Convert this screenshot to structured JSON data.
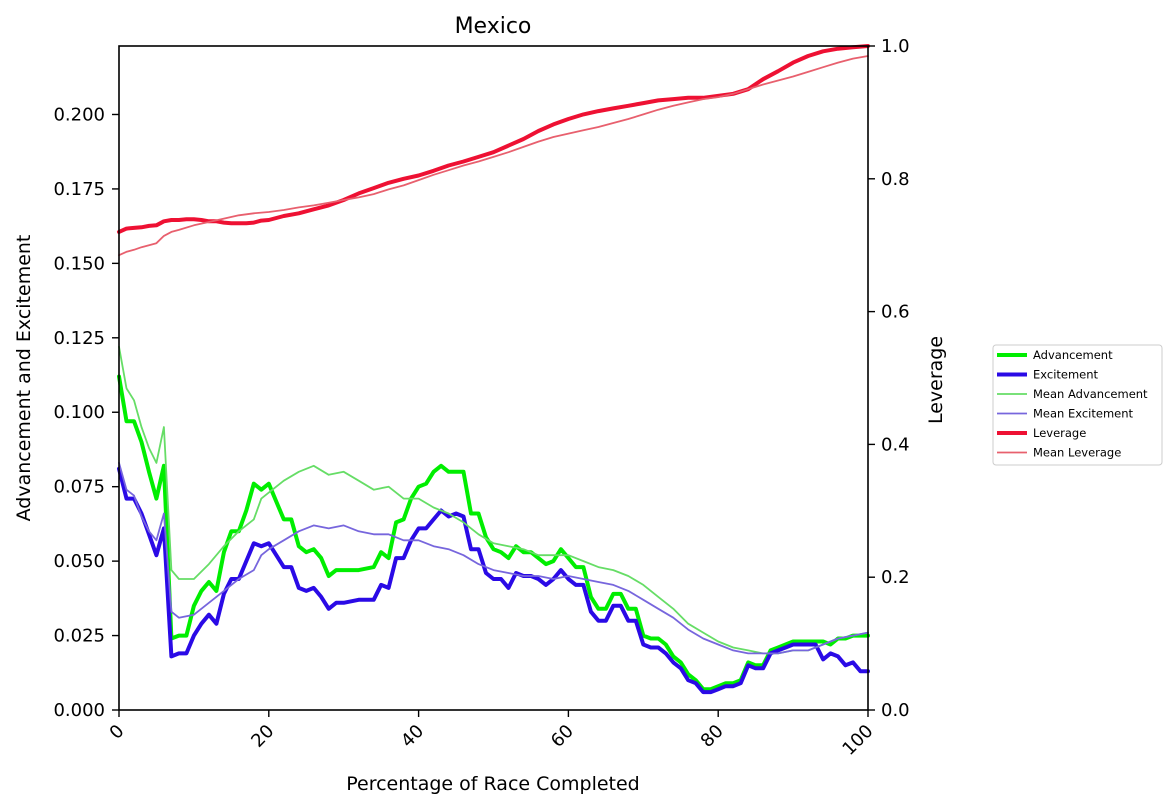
{
  "chart_data": {
    "type": "line",
    "title": "Mexico",
    "xlabel": "Percentage of Race Completed",
    "ylabel": "Advancement and Excitement",
    "y2label": "Leverage",
    "xlim": [
      0,
      100
    ],
    "ylim": [
      0,
      0.223
    ],
    "y2lim": [
      0,
      1.0
    ],
    "x_ticks": [
      0,
      20,
      40,
      60,
      80,
      100
    ],
    "x_tick_labels": [
      "0",
      "20",
      "40",
      "60",
      "80",
      "100"
    ],
    "y_ticks": [
      0,
      0.025,
      0.05,
      0.075,
      0.1,
      0.125,
      0.15,
      0.175,
      0.2
    ],
    "y_tick_labels": [
      "0.000",
      "0.025",
      "0.050",
      "0.075",
      "0.100",
      "0.125",
      "0.150",
      "0.175",
      "0.200"
    ],
    "y2_ticks": [
      0,
      0.2,
      0.4,
      0.6,
      0.8,
      1.0
    ],
    "y2_tick_labels": [
      "0.0",
      "0.2",
      "0.4",
      "0.6",
      "0.8",
      "1.0"
    ],
    "grid": false,
    "legend_position": "right-outside",
    "series": [
      {
        "name": "Advancement",
        "axis": "left",
        "color": "#00ee00",
        "width": 4,
        "x": [
          0,
          1,
          2,
          3,
          4,
          5,
          6,
          7,
          8,
          9,
          10,
          11,
          12,
          13,
          14,
          15,
          16,
          17,
          18,
          19,
          20,
          21,
          22,
          23,
          24,
          25,
          26,
          27,
          28,
          29,
          30,
          32,
          34,
          35,
          36,
          37,
          38,
          39,
          40,
          41,
          42,
          43,
          44,
          45,
          46,
          47,
          48,
          49,
          50,
          51,
          52,
          53,
          54,
          55,
          56,
          57,
          58,
          59,
          60,
          61,
          62,
          63,
          64,
          65,
          66,
          67,
          68,
          69,
          70,
          71,
          72,
          73,
          74,
          75,
          76,
          77,
          78,
          79,
          80,
          81,
          82,
          83,
          84,
          85,
          86,
          87,
          88,
          89,
          90,
          91,
          92,
          93,
          94,
          95,
          96,
          97,
          98,
          99,
          100
        ],
        "values": [
          0.112,
          0.097,
          0.097,
          0.09,
          0.08,
          0.071,
          0.082,
          0.024,
          0.025,
          0.025,
          0.035,
          0.04,
          0.043,
          0.04,
          0.053,
          0.06,
          0.06,
          0.067,
          0.076,
          0.074,
          0.076,
          0.07,
          0.064,
          0.064,
          0.055,
          0.053,
          0.054,
          0.051,
          0.045,
          0.047,
          0.047,
          0.047,
          0.048,
          0.053,
          0.051,
          0.063,
          0.064,
          0.071,
          0.075,
          0.076,
          0.08,
          0.082,
          0.08,
          0.08,
          0.08,
          0.066,
          0.066,
          0.058,
          0.054,
          0.053,
          0.051,
          0.055,
          0.053,
          0.053,
          0.051,
          0.049,
          0.05,
          0.054,
          0.051,
          0.048,
          0.048,
          0.038,
          0.034,
          0.034,
          0.039,
          0.039,
          0.034,
          0.034,
          0.025,
          0.024,
          0.024,
          0.022,
          0.018,
          0.016,
          0.012,
          0.01,
          0.007,
          0.007,
          0.008,
          0.009,
          0.009,
          0.01,
          0.016,
          0.015,
          0.015,
          0.02,
          0.021,
          0.022,
          0.023,
          0.023,
          0.023,
          0.023,
          0.023,
          0.022,
          0.024,
          0.024,
          0.025,
          0.025,
          0.025
        ]
      },
      {
        "name": "Excitement",
        "axis": "left",
        "color": "#2a0ae6",
        "width": 4,
        "x": [
          0,
          1,
          2,
          3,
          4,
          5,
          6,
          7,
          8,
          9,
          10,
          11,
          12,
          13,
          14,
          15,
          16,
          17,
          18,
          19,
          20,
          21,
          22,
          23,
          24,
          25,
          26,
          27,
          28,
          29,
          30,
          32,
          34,
          35,
          36,
          37,
          38,
          39,
          40,
          41,
          42,
          43,
          44,
          45,
          46,
          47,
          48,
          49,
          50,
          51,
          52,
          53,
          54,
          55,
          56,
          57,
          58,
          59,
          60,
          61,
          62,
          63,
          64,
          65,
          66,
          67,
          68,
          69,
          70,
          71,
          72,
          73,
          74,
          75,
          76,
          77,
          78,
          79,
          80,
          81,
          82,
          83,
          84,
          85,
          86,
          87,
          88,
          89,
          90,
          91,
          92,
          93,
          94,
          95,
          96,
          97,
          98,
          99,
          100
        ],
        "values": [
          0.081,
          0.071,
          0.071,
          0.066,
          0.059,
          0.052,
          0.061,
          0.018,
          0.019,
          0.019,
          0.025,
          0.029,
          0.032,
          0.029,
          0.039,
          0.044,
          0.044,
          0.05,
          0.056,
          0.055,
          0.056,
          0.052,
          0.048,
          0.048,
          0.041,
          0.04,
          0.041,
          0.038,
          0.034,
          0.036,
          0.036,
          0.037,
          0.037,
          0.042,
          0.041,
          0.051,
          0.051,
          0.057,
          0.061,
          0.061,
          0.064,
          0.067,
          0.065,
          0.066,
          0.065,
          0.054,
          0.054,
          0.046,
          0.044,
          0.044,
          0.041,
          0.046,
          0.045,
          0.045,
          0.044,
          0.042,
          0.044,
          0.047,
          0.044,
          0.042,
          0.042,
          0.033,
          0.03,
          0.03,
          0.035,
          0.035,
          0.03,
          0.03,
          0.022,
          0.021,
          0.021,
          0.019,
          0.016,
          0.014,
          0.01,
          0.009,
          0.006,
          0.006,
          0.007,
          0.008,
          0.008,
          0.009,
          0.015,
          0.014,
          0.014,
          0.019,
          0.02,
          0.021,
          0.022,
          0.022,
          0.022,
          0.022,
          0.017,
          0.019,
          0.018,
          0.015,
          0.016,
          0.013,
          0.013
        ]
      },
      {
        "name": "Mean Advancement",
        "axis": "left",
        "color": "#66dd66",
        "width": 1.8,
        "x": [
          0,
          1,
          2,
          3,
          4,
          5,
          6,
          7,
          8,
          10,
          12,
          14,
          16,
          18,
          19,
          20,
          22,
          24,
          26,
          28,
          30,
          32,
          34,
          36,
          38,
          40,
          42,
          44,
          46,
          48,
          50,
          52,
          54,
          56,
          58,
          60,
          62,
          64,
          66,
          68,
          70,
          72,
          74,
          76,
          78,
          80,
          82,
          84,
          86,
          88,
          90,
          92,
          94,
          96,
          98,
          100
        ],
        "values": [
          0.122,
          0.108,
          0.104,
          0.095,
          0.088,
          0.083,
          0.095,
          0.047,
          0.044,
          0.044,
          0.049,
          0.055,
          0.06,
          0.064,
          0.071,
          0.073,
          0.077,
          0.08,
          0.082,
          0.079,
          0.08,
          0.077,
          0.074,
          0.075,
          0.071,
          0.071,
          0.068,
          0.066,
          0.063,
          0.059,
          0.056,
          0.055,
          0.054,
          0.052,
          0.052,
          0.052,
          0.05,
          0.048,
          0.047,
          0.045,
          0.042,
          0.038,
          0.034,
          0.029,
          0.026,
          0.023,
          0.021,
          0.02,
          0.019,
          0.019,
          0.02,
          0.02,
          0.022,
          0.024,
          0.025,
          0.026
        ]
      },
      {
        "name": "Mean Excitement",
        "axis": "left",
        "color": "#7766dd",
        "width": 1.8,
        "x": [
          0,
          1,
          2,
          3,
          4,
          5,
          6,
          7,
          8,
          10,
          12,
          14,
          16,
          18,
          19,
          20,
          22,
          24,
          26,
          28,
          30,
          32,
          34,
          36,
          38,
          40,
          42,
          44,
          46,
          48,
          50,
          52,
          54,
          56,
          58,
          60,
          62,
          64,
          66,
          68,
          70,
          72,
          74,
          76,
          78,
          80,
          82,
          84,
          86,
          88,
          90,
          92,
          94,
          96,
          98,
          100
        ],
        "values": [
          0.083,
          0.074,
          0.072,
          0.065,
          0.06,
          0.057,
          0.066,
          0.033,
          0.031,
          0.032,
          0.036,
          0.04,
          0.044,
          0.047,
          0.052,
          0.054,
          0.057,
          0.06,
          0.062,
          0.061,
          0.062,
          0.06,
          0.059,
          0.059,
          0.057,
          0.057,
          0.055,
          0.054,
          0.052,
          0.049,
          0.047,
          0.046,
          0.045,
          0.045,
          0.044,
          0.045,
          0.044,
          0.043,
          0.042,
          0.04,
          0.037,
          0.034,
          0.031,
          0.027,
          0.024,
          0.022,
          0.02,
          0.019,
          0.019,
          0.019,
          0.02,
          0.02,
          0.022,
          0.024,
          0.025,
          0.026
        ]
      },
      {
        "name": "Leverage",
        "axis": "right",
        "color": "#ee1133",
        "width": 4,
        "x": [
          0,
          1,
          2,
          3,
          4,
          5,
          6,
          7,
          8,
          9,
          10,
          11,
          12,
          13,
          14,
          15,
          16,
          17,
          18,
          19,
          20,
          22,
          24,
          26,
          28,
          30,
          32,
          34,
          36,
          38,
          40,
          42,
          44,
          46,
          48,
          50,
          52,
          54,
          56,
          58,
          60,
          62,
          64,
          66,
          68,
          70,
          72,
          74,
          76,
          78,
          80,
          82,
          84,
          86,
          88,
          90,
          92,
          94,
          96,
          98,
          100
        ],
        "values": [
          0.72,
          0.725,
          0.726,
          0.727,
          0.729,
          0.73,
          0.736,
          0.738,
          0.738,
          0.739,
          0.739,
          0.738,
          0.736,
          0.736,
          0.734,
          0.733,
          0.733,
          0.733,
          0.734,
          0.737,
          0.738,
          0.744,
          0.748,
          0.754,
          0.76,
          0.768,
          0.778,
          0.786,
          0.794,
          0.8,
          0.805,
          0.812,
          0.82,
          0.826,
          0.833,
          0.84,
          0.85,
          0.86,
          0.872,
          0.882,
          0.89,
          0.897,
          0.902,
          0.906,
          0.91,
          0.914,
          0.918,
          0.92,
          0.922,
          0.922,
          0.925,
          0.928,
          0.935,
          0.95,
          0.962,
          0.975,
          0.985,
          0.992,
          0.996,
          0.998,
          1.0
        ]
      },
      {
        "name": "Mean Leverage",
        "axis": "right",
        "color": "#e8606e",
        "width": 1.8,
        "x": [
          0,
          1,
          2,
          3,
          4,
          5,
          6,
          7,
          8,
          10,
          12,
          14,
          16,
          18,
          20,
          22,
          24,
          26,
          28,
          30,
          32,
          34,
          36,
          38,
          40,
          42,
          44,
          46,
          48,
          50,
          52,
          54,
          56,
          58,
          60,
          62,
          64,
          66,
          68,
          70,
          72,
          74,
          76,
          78,
          80,
          82,
          84,
          86,
          88,
          90,
          92,
          94,
          96,
          98,
          100
        ],
        "values": [
          0.685,
          0.69,
          0.693,
          0.697,
          0.7,
          0.703,
          0.714,
          0.72,
          0.723,
          0.73,
          0.735,
          0.74,
          0.745,
          0.748,
          0.75,
          0.753,
          0.757,
          0.76,
          0.764,
          0.768,
          0.772,
          0.777,
          0.784,
          0.79,
          0.798,
          0.806,
          0.813,
          0.82,
          0.826,
          0.833,
          0.84,
          0.848,
          0.856,
          0.863,
          0.868,
          0.873,
          0.878,
          0.884,
          0.89,
          0.897,
          0.904,
          0.91,
          0.915,
          0.92,
          0.923,
          0.928,
          0.935,
          0.942,
          0.948,
          0.954,
          0.961,
          0.968,
          0.975,
          0.981,
          0.985
        ]
      }
    ]
  }
}
